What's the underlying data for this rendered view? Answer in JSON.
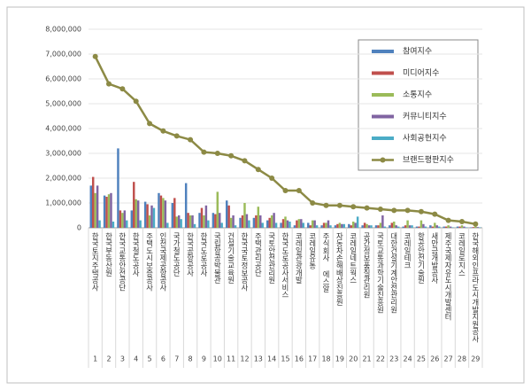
{
  "chart_data": {
    "type": "bar",
    "categories": [
      "한국토지주택공사",
      "한국부동산원",
      "한국교통안전공단",
      "한국철도공사",
      "주택도시보증공사",
      "인천국제공항공사",
      "국가철도공단",
      "한국공항공사",
      "한국도로공사",
      "국립항공박물관",
      "건설기술교육원",
      "한국국토정보공사",
      "주택관리공단",
      "국토안전관리원",
      "한국도로공사서비스",
      "코레일관광개발",
      "코레일유통",
      "주식회사 에스알",
      "자동차손해배상진흥원",
      "코레일네트웍스",
      "공간정보품질관리원",
      "국토교통과학기술진흥원",
      "대한건설기계안전관리원",
      "코레일테크",
      "항공안전기술원",
      "새만금개발공사",
      "제주국제자유도시개발센터",
      "코레일로지스",
      "한국해외인프라도시개발지원공사"
    ],
    "category_numbers": [
      1,
      2,
      3,
      4,
      5,
      6,
      7,
      8,
      9,
      10,
      11,
      12,
      13,
      14,
      15,
      16,
      17,
      18,
      19,
      20,
      21,
      22,
      23,
      24,
      25,
      26,
      27,
      28,
      29
    ],
    "series": [
      {
        "name": "참여지수",
        "color": "#4f81bd",
        "values": [
          1700000,
          1300000,
          3200000,
          700000,
          1050000,
          1400000,
          1000000,
          1800000,
          600000,
          600000,
          1100000,
          400000,
          400000,
          300000,
          200000,
          100000,
          200000,
          100000,
          100000,
          150000,
          100000,
          100000,
          100000,
          50000,
          50000,
          100000,
          50000,
          50000,
          20000
        ]
      },
      {
        "name": "미디어지수",
        "color": "#c0504d",
        "values": [
          2050000,
          1250000,
          700000,
          1850000,
          950000,
          1300000,
          1200000,
          600000,
          800000,
          550000,
          900000,
          500000,
          500000,
          400000,
          350000,
          300000,
          100000,
          200000,
          150000,
          100000,
          200000,
          100000,
          200000,
          100000,
          50000,
          50000,
          50000,
          50000,
          30000
        ]
      },
      {
        "name": "소통지수",
        "color": "#9bbb59",
        "values": [
          1400000,
          1350000,
          600000,
          1150000,
          500000,
          1200000,
          450000,
          500000,
          500000,
          1450000,
          400000,
          1000000,
          850000,
          500000,
          450000,
          350000,
          300000,
          200000,
          200000,
          250000,
          150000,
          200000,
          250000,
          300000,
          300000,
          200000,
          100000,
          100000,
          50000
        ]
      },
      {
        "name": "커뮤니티지수",
        "color": "#8064a2",
        "values": [
          1700000,
          1400000,
          700000,
          1100000,
          900000,
          1100000,
          500000,
          500000,
          900000,
          600000,
          500000,
          550000,
          500000,
          600000,
          300000,
          350000,
          300000,
          300000,
          150000,
          200000,
          100000,
          500000,
          100000,
          100000,
          150000,
          100000,
          50000,
          50000,
          30000
        ]
      },
      {
        "name": "사회공헌지수",
        "color": "#4bacc6",
        "values": [
          300000,
          250000,
          300000,
          300000,
          800000,
          200000,
          350000,
          150000,
          300000,
          200000,
          100000,
          300000,
          200000,
          200000,
          250000,
          200000,
          100000,
          100000,
          150000,
          450000,
          100000,
          50000,
          50000,
          100000,
          50000,
          50000,
          20000,
          20000,
          20000
        ]
      },
      {
        "name": "브랜드평판지수",
        "color": "#8c8a45",
        "type": "line",
        "values": [
          6900000,
          5800000,
          5600000,
          5100000,
          4200000,
          3900000,
          3700000,
          3550000,
          3050000,
          3000000,
          2900000,
          2700000,
          2350000,
          2000000,
          1500000,
          1500000,
          1000000,
          900000,
          900000,
          850000,
          800000,
          750000,
          700000,
          700000,
          650000,
          550000,
          300000,
          250000,
          150000
        ]
      }
    ],
    "ylim": [
      0,
      8000000
    ],
    "yticks": [
      0,
      {
        "value": 1000000,
        "label": "1,000,000"
      },
      {
        "value": 2000000,
        "label": "2,000,000"
      },
      {
        "value": 3000000,
        "label": "3,000,000"
      },
      {
        "value": 4000000,
        "label": "4,000,000"
      },
      {
        "value": 5000000,
        "label": "5,000,000"
      },
      {
        "value": 6000000,
        "label": "6,000,000"
      },
      {
        "value": 7000000,
        "label": "7,000,000"
      },
      {
        "value": 8000000,
        "label": "8,000,000"
      }
    ],
    "grid": true,
    "legend": "right"
  }
}
